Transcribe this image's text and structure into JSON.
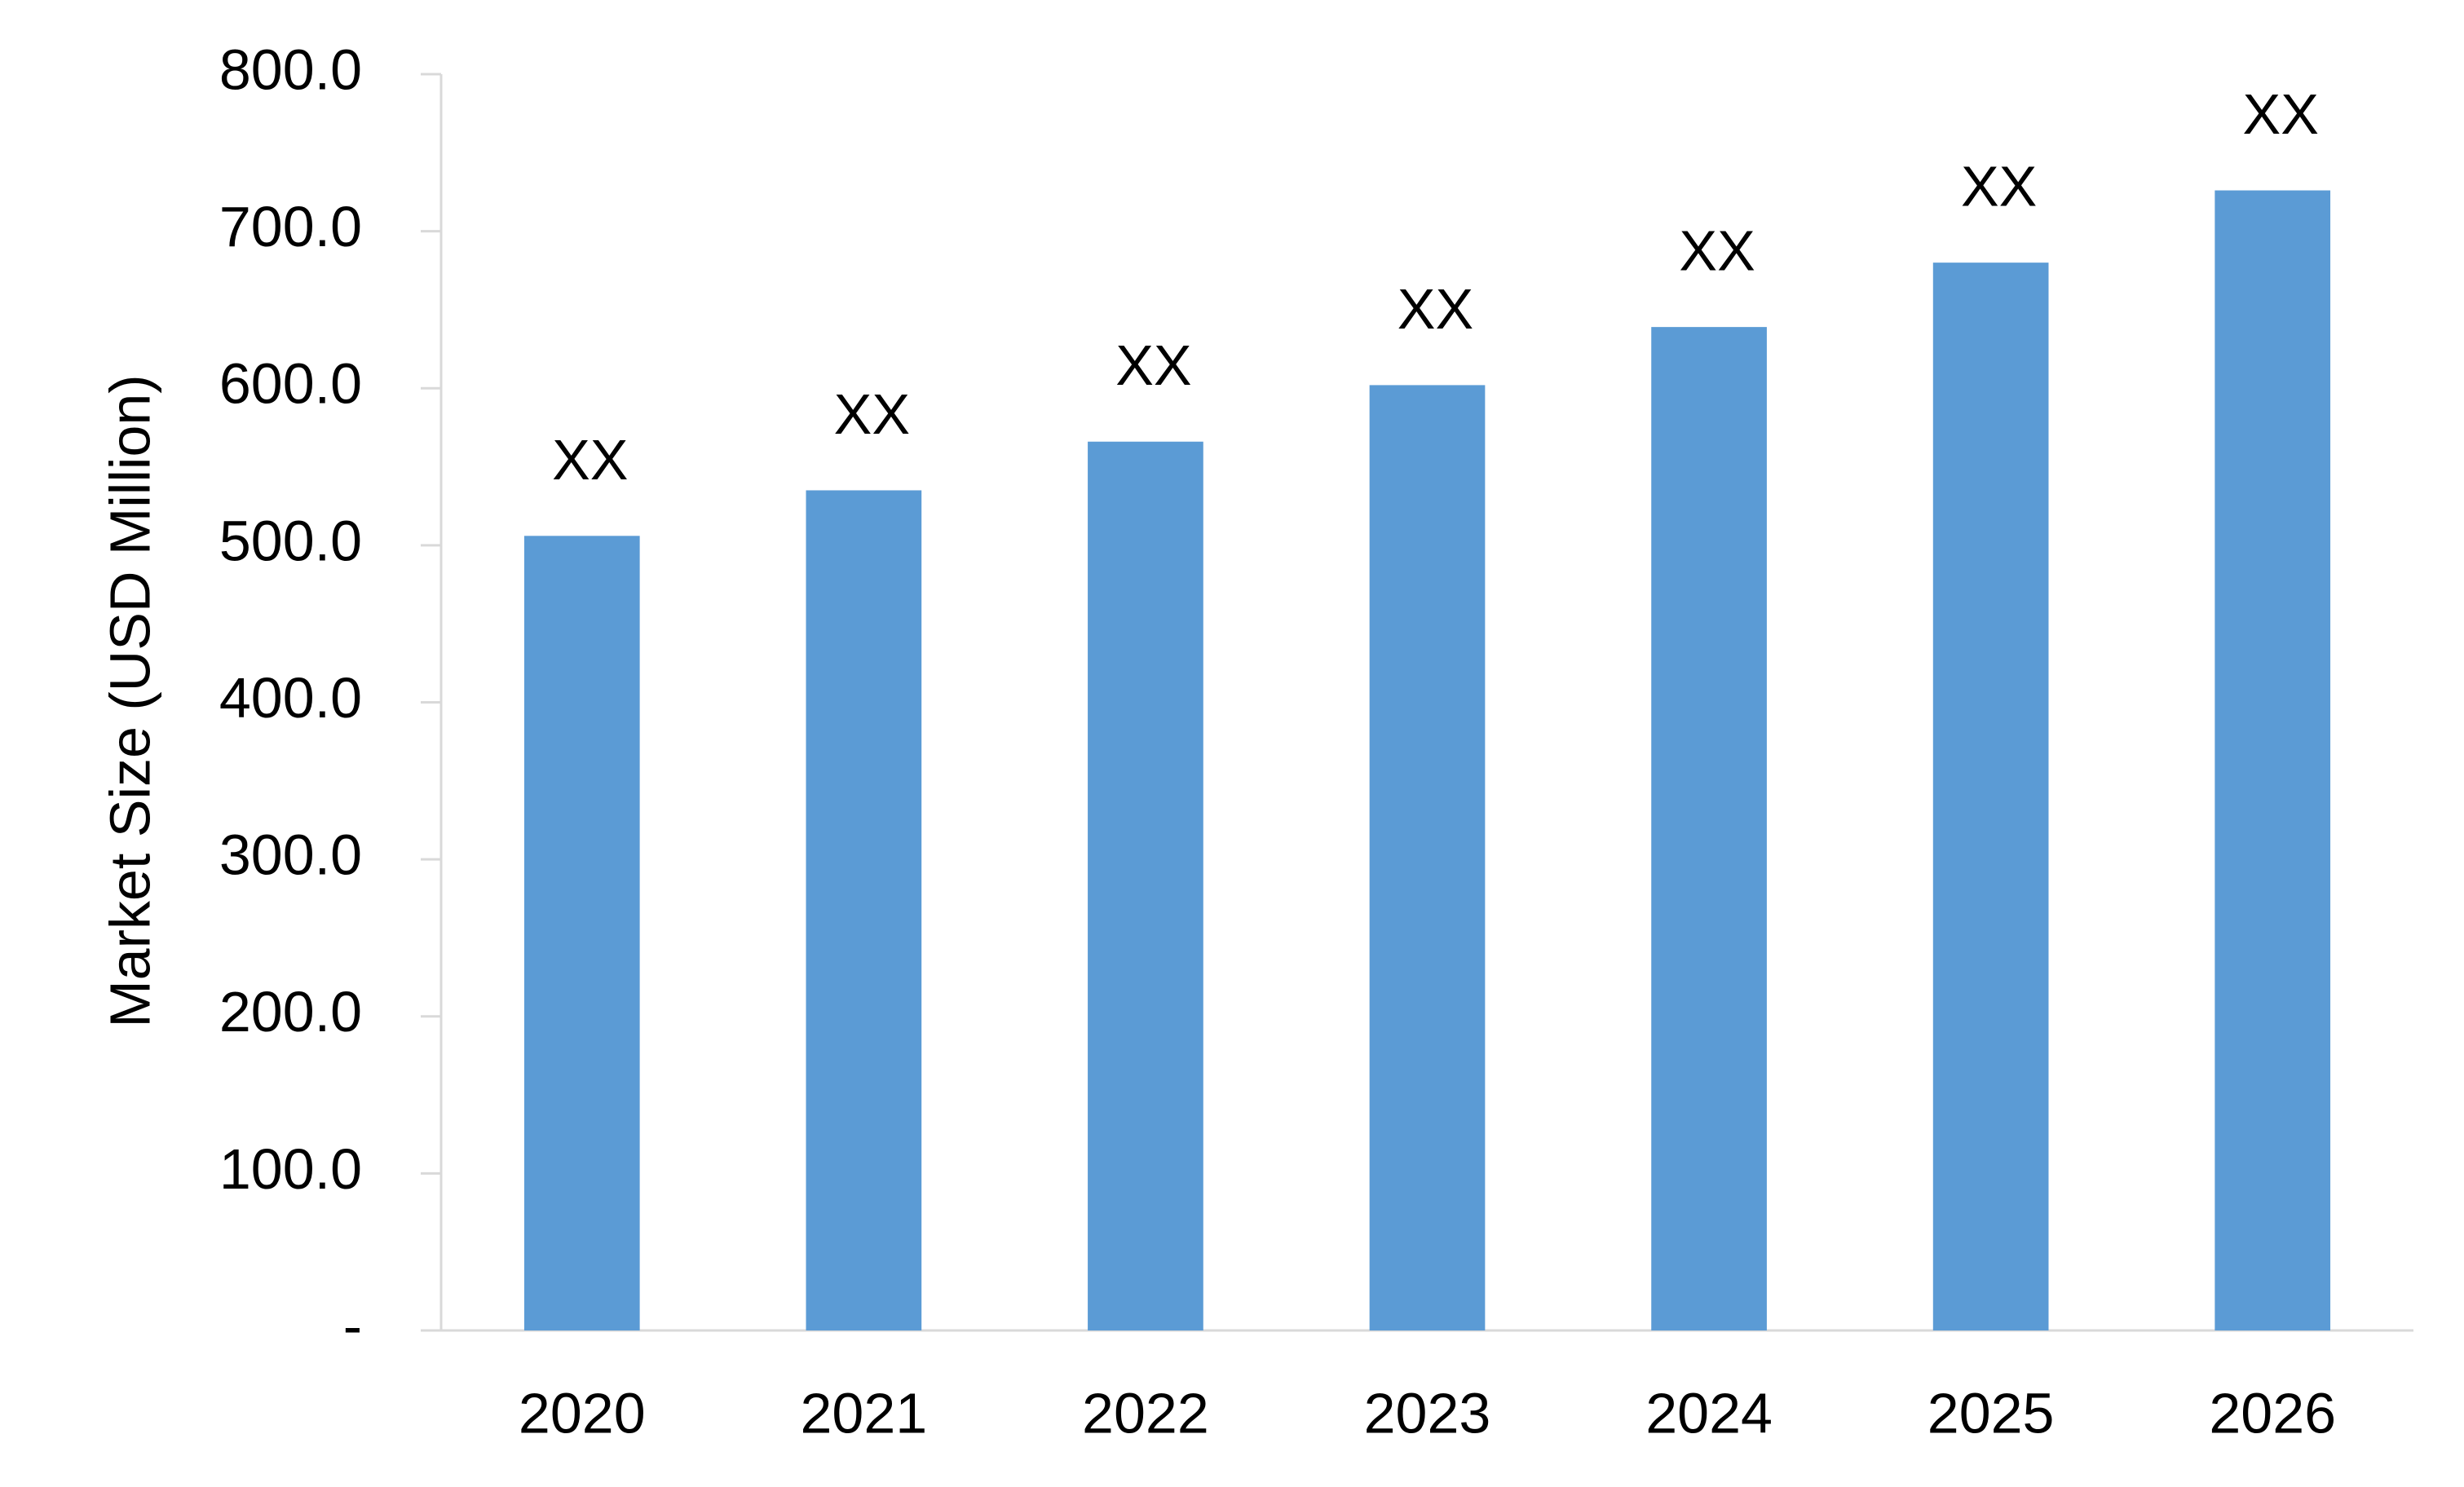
{
  "chart_data": {
    "type": "bar",
    "y_label": "Market Size (USD Million)",
    "categories": [
      "2020",
      "2021",
      "2022",
      "2023",
      "2024",
      "2025",
      "2026"
    ],
    "values": [
      506,
      535,
      566,
      602,
      639,
      680,
      726
    ],
    "value_labels": [
      "XX",
      "XX",
      "XX",
      "XX",
      "XX",
      "XX",
      "XX"
    ],
    "color": "#5b9bd5",
    "ylim": [
      0,
      800
    ],
    "yticks": [
      {
        "value": 0,
        "label": "-"
      },
      {
        "value": 100,
        "label": "100.0"
      },
      {
        "value": 200,
        "label": "200.0"
      },
      {
        "value": 300,
        "label": "300.0"
      },
      {
        "value": 400,
        "label": "400.0"
      },
      {
        "value": 500,
        "label": "500.0"
      },
      {
        "value": 600,
        "label": "600.0"
      },
      {
        "value": 700,
        "label": "700.0"
      },
      {
        "value": 800,
        "label": "800.0"
      }
    ],
    "grid": false
  }
}
